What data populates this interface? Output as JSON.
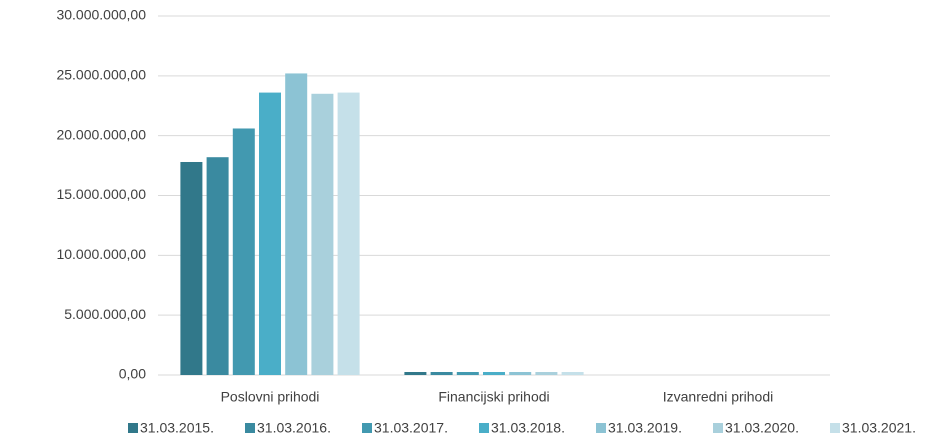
{
  "chart_data": {
    "type": "bar",
    "categories": [
      "Poslovni prihodi",
      "Financijski prihodi",
      "Izvanredni prihodi"
    ],
    "series": [
      {
        "name": "31.03.2015.",
        "color": "#31788a",
        "values": [
          17800000,
          250000,
          0
        ]
      },
      {
        "name": "31.03.2016.",
        "color": "#3a8aa0",
        "values": [
          18200000,
          250000,
          0
        ]
      },
      {
        "name": "31.03.2017.",
        "color": "#4299b0",
        "values": [
          20600000,
          250000,
          0
        ]
      },
      {
        "name": "31.03.2018.",
        "color": "#4aaec8",
        "values": [
          23600000,
          250000,
          0
        ]
      },
      {
        "name": "31.03.2019.",
        "color": "#8cc3d4",
        "values": [
          25200000,
          250000,
          0
        ]
      },
      {
        "name": "31.03.2020.",
        "color": "#a9d0dc",
        "values": [
          23500000,
          250000,
          0
        ]
      },
      {
        "name": "31.03.2021.",
        "color": "#c5e0e9",
        "values": [
          23600000,
          250000,
          0
        ]
      }
    ],
    "ylim": [
      0,
      30000000
    ],
    "yticks": [
      {
        "value": 0,
        "label": "0,00"
      },
      {
        "value": 5000000,
        "label": "5.000.000,00"
      },
      {
        "value": 10000000,
        "label": "10.000.000,00"
      },
      {
        "value": 15000000,
        "label": "15.000.000,00"
      },
      {
        "value": 20000000,
        "label": "20.000.000,00"
      },
      {
        "value": 25000000,
        "label": "25.000.000,00"
      },
      {
        "value": 30000000,
        "label": "30.000.000,00"
      }
    ],
    "grid": true,
    "legend": "bottom"
  }
}
